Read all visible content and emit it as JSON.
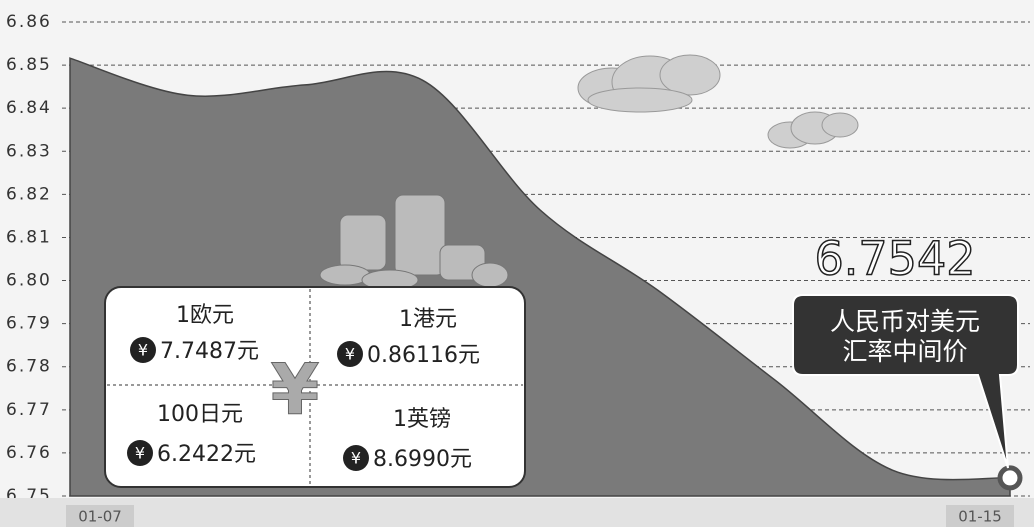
{
  "chart_data": {
    "type": "area",
    "categories": [
      "01-07",
      null,
      null,
      null,
      null,
      null,
      null,
      null,
      "01-15"
    ],
    "values": [
      6.8516,
      6.843,
      6.8454,
      6.8465,
      6.8164,
      6.7978,
      6.7769,
      6.756,
      6.7542
    ],
    "value_labels": [
      null,
      null,
      null,
      null,
      null,
      null,
      null,
      null,
      "6.7542"
    ],
    "color": "#7a7a7a",
    "ylim": [
      6.75,
      6.86
    ],
    "yticks": [
      6.75,
      6.76,
      6.77,
      6.78,
      6.79,
      {
        "value": 6.8,
        "label": "6.80"
      },
      6.81,
      6.82,
      6.83,
      6.84,
      6.85,
      6.86
    ],
    "grid": true,
    "callout": [
      "人民币对美元",
      "汇率中间价"
    ]
  },
  "panel": {
    "currency_symbol": "¥",
    "items": [
      {
        "label": "1欧元",
        "value": "7.7487元"
      },
      {
        "label": "1港元",
        "value": "0.86116元"
      },
      {
        "label": "100日元",
        "value": "6.2422元"
      },
      {
        "label": "1英镑",
        "value": "8.6990元"
      }
    ]
  }
}
